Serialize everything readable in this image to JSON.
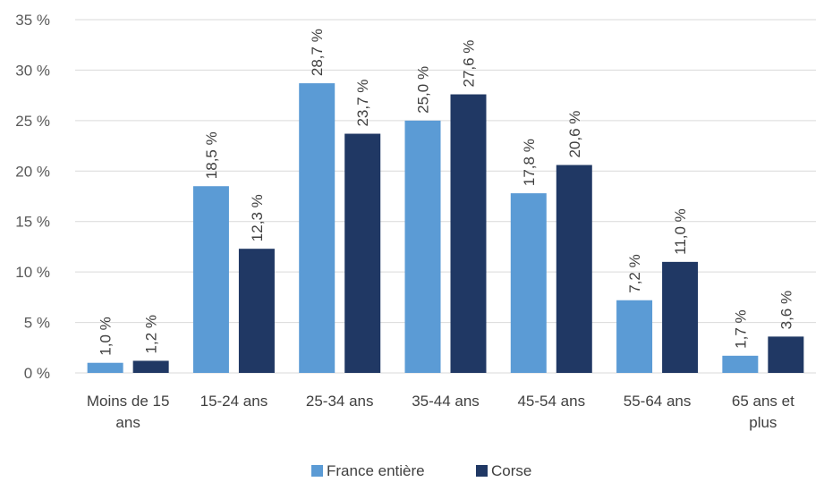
{
  "chart_data": {
    "type": "bar",
    "title": "",
    "xlabel": "",
    "ylabel": "",
    "ylim": [
      0,
      35
    ],
    "ytick_step": 5,
    "y_tick_suffix": " %",
    "grid": true,
    "legend_position": "bottom",
    "categories": [
      [
        "Moins de 15",
        "ans"
      ],
      [
        "15-24 ans"
      ],
      [
        "25-34 ans"
      ],
      [
        "35-44 ans"
      ],
      [
        "45-54 ans"
      ],
      [
        "55-64 ans"
      ],
      [
        "65 ans et",
        "plus"
      ]
    ],
    "series": [
      {
        "name": "France entière",
        "color": "#5b9bd5",
        "values": [
          1.0,
          18.5,
          28.7,
          25.0,
          17.8,
          7.2,
          1.7
        ],
        "labels": [
          "1,0 %",
          "18,5 %",
          "28,7 %",
          "25,0 %",
          "17,8 %",
          "7,2 %",
          "1,7 %"
        ]
      },
      {
        "name": "Corse",
        "color": "#203864",
        "values": [
          1.2,
          12.3,
          23.7,
          27.6,
          20.6,
          11.0,
          3.6
        ],
        "labels": [
          "1,2 %",
          "12,3 %",
          "23,7 %",
          "27,6 %",
          "20,6 %",
          "11,0 %",
          "3,6 %"
        ]
      }
    ]
  }
}
